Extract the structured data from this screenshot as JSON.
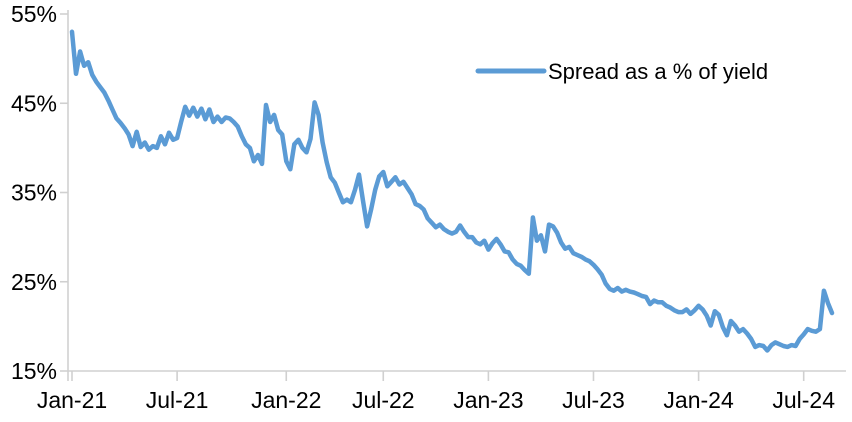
{
  "chart": {
    "line_color": "#5B9BD5",
    "axis_color": "#D0D0D0",
    "text_color": "#000000",
    "background_color": "#FFFFFF"
  },
  "chart_data": {
    "type": "line",
    "title": "",
    "xlabel": "",
    "ylabel": "",
    "grid": false,
    "legend_position": "upper-center-right",
    "ylim": [
      15,
      55
    ],
    "y_ticks": [
      15,
      25,
      35,
      45,
      55
    ],
    "y_tick_labels": [
      "15%",
      "25%",
      "35%",
      "45%",
      "55%"
    ],
    "x_tick_labels": [
      "Jan-21",
      "Jul-21",
      "Jan-22",
      "Jul-22",
      "Jan-23",
      "Jul-23",
      "Jan-24",
      "Jul-24"
    ],
    "x_tick_indices": [
      0,
      26,
      53,
      77,
      103,
      129,
      155,
      181
    ],
    "sampling": "approximately weekly samples from Jan-2021 to mid-Aug-2024, values in percent",
    "series": [
      {
        "name": "Spread as a % of yield",
        "values": [
          53.0,
          48.3,
          50.8,
          49.2,
          49.6,
          48.2,
          47.4,
          46.8,
          46.2,
          45.3,
          44.3,
          43.3,
          42.8,
          42.2,
          41.5,
          40.2,
          41.8,
          40.1,
          40.6,
          39.8,
          40.2,
          40.0,
          41.3,
          40.4,
          41.7,
          40.9,
          41.1,
          42.9,
          44.6,
          43.6,
          44.5,
          43.5,
          44.4,
          43.2,
          44.3,
          42.9,
          43.5,
          42.9,
          43.4,
          43.3,
          42.9,
          42.4,
          41.3,
          40.4,
          40.0,
          38.5,
          39.2,
          38.2,
          44.8,
          42.9,
          43.7,
          42.0,
          41.5,
          38.5,
          37.6,
          40.4,
          40.9,
          40.0,
          39.5,
          41.0,
          45.1,
          43.7,
          40.6,
          38.4,
          36.7,
          36.1,
          35.0,
          33.9,
          34.2,
          33.9,
          35.3,
          37.0,
          34.0,
          31.2,
          33.1,
          35.3,
          36.8,
          37.3,
          35.7,
          36.2,
          36.7,
          35.9,
          36.2,
          35.5,
          34.8,
          33.7,
          33.5,
          33.1,
          32.1,
          31.6,
          31.1,
          31.4,
          30.9,
          30.6,
          30.4,
          30.6,
          31.3,
          30.6,
          30.0,
          30.0,
          29.4,
          29.2,
          29.6,
          28.6,
          29.3,
          29.8,
          29.2,
          28.4,
          28.3,
          27.5,
          27.0,
          26.8,
          26.3,
          25.9,
          32.2,
          29.6,
          30.2,
          28.4,
          31.4,
          31.2,
          30.5,
          29.4,
          28.7,
          28.9,
          28.2,
          28.0,
          27.8,
          27.5,
          27.3,
          26.9,
          26.4,
          25.8,
          24.8,
          24.2,
          24.0,
          24.3,
          23.9,
          24.1,
          23.9,
          23.8,
          23.6,
          23.4,
          23.3,
          22.5,
          22.9,
          22.7,
          22.7,
          22.3,
          22.1,
          21.8,
          21.6,
          21.6,
          21.9,
          21.4,
          21.8,
          22.3,
          21.9,
          21.2,
          20.1,
          21.7,
          21.3,
          19.9,
          19.0,
          20.6,
          20.1,
          19.4,
          19.7,
          19.2,
          18.6,
          17.7,
          17.9,
          17.8,
          17.3,
          17.9,
          18.2,
          18.0,
          17.8,
          17.7,
          17.9,
          17.8,
          18.6,
          19.1,
          19.7,
          19.5,
          19.4,
          19.7,
          24.0,
          22.6,
          21.5
        ]
      }
    ]
  }
}
